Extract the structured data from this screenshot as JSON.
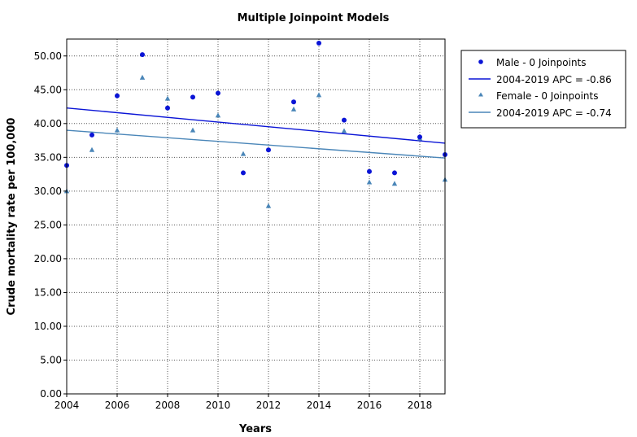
{
  "chart_data": {
    "type": "scatter",
    "title": "Multiple Joinpoint Models",
    "xlabel": "Years",
    "ylabel": "Crude mortality rate per 100,000",
    "xlim": [
      2004,
      2019
    ],
    "ylim": [
      0,
      52.5
    ],
    "x_ticks": [
      2004,
      2006,
      2008,
      2010,
      2012,
      2014,
      2016,
      2018
    ],
    "x_tick_labels": [
      "2004",
      "2006",
      "2008",
      "2010",
      "2012",
      "2014",
      "2016",
      "2018"
    ],
    "y_ticks": [
      0,
      5,
      10,
      15,
      20,
      25,
      30,
      35,
      40,
      45,
      50
    ],
    "y_tick_labels": [
      "0.00",
      "5.00",
      "10.00",
      "15.00",
      "20.00",
      "25.00",
      "30.00",
      "35.00",
      "40.00",
      "45.00",
      "50.00"
    ],
    "grid": true,
    "legend_position": "right",
    "colors": {
      "male": "#0a14d6",
      "female": "#4a86b8"
    },
    "series": [
      {
        "name": "Male - 0 Joinpoints",
        "marker": "circle",
        "x": [
          2004,
          2005,
          2006,
          2007,
          2008,
          2009,
          2010,
          2011,
          2012,
          2013,
          2014,
          2015,
          2016,
          2017,
          2018,
          2019
        ],
        "values": [
          33.8,
          38.3,
          44.1,
          50.2,
          42.3,
          43.9,
          44.5,
          32.7,
          36.1,
          43.2,
          51.9,
          40.5,
          32.9,
          32.7,
          38.0,
          35.4
        ]
      },
      {
        "name": "Female - 0 Joinpoints",
        "marker": "triangle",
        "x": [
          2004,
          2005,
          2006,
          2007,
          2008,
          2009,
          2010,
          2011,
          2012,
          2013,
          2014,
          2015,
          2016,
          2017,
          2018,
          2019
        ],
        "values": [
          30.0,
          36.1,
          39.0,
          46.8,
          43.7,
          39.0,
          41.2,
          35.5,
          27.8,
          42.1,
          44.2,
          38.9,
          31.3,
          31.1,
          37.8,
          31.7
        ]
      }
    ],
    "trend_lines": [
      {
        "name": "2004-2019 APC  = -0.86",
        "x": [
          2004,
          2019
        ],
        "values": [
          42.3,
          37.1
        ]
      },
      {
        "name": "2004-2019 APC  = -0.74",
        "x": [
          2004,
          2019
        ],
        "values": [
          39.0,
          34.9
        ]
      }
    ]
  }
}
